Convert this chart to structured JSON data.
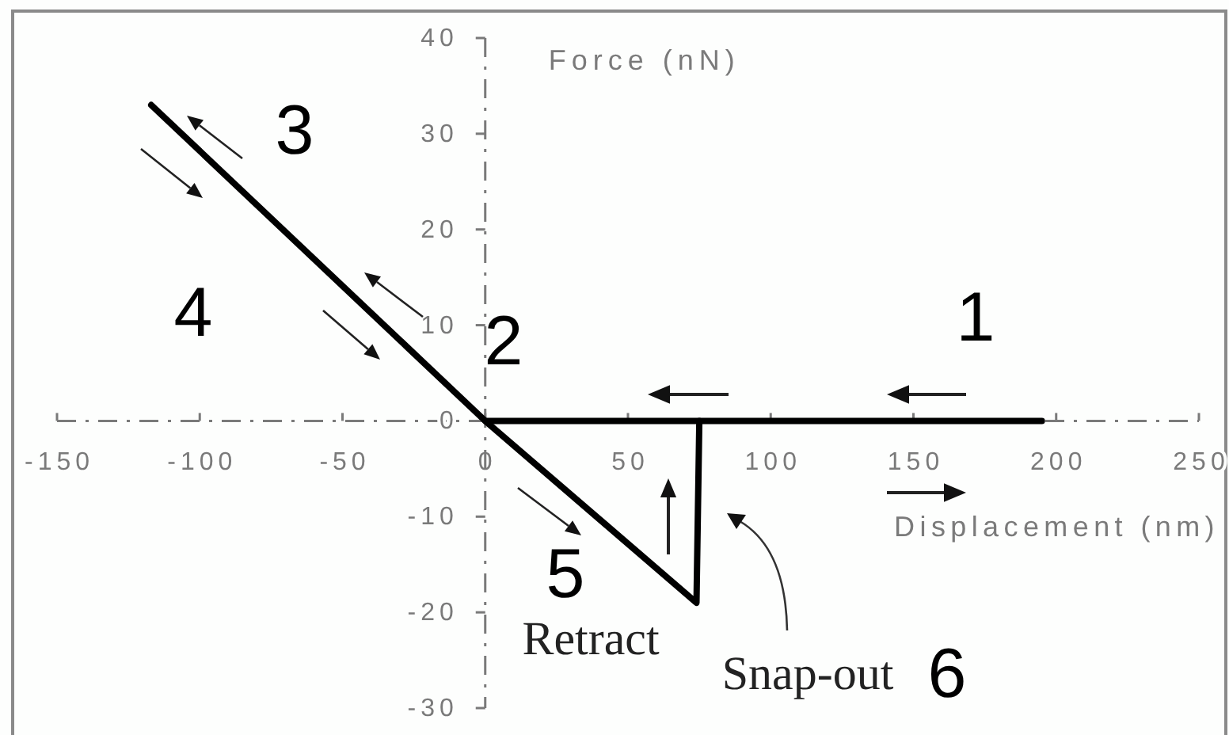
{
  "chart_data": {
    "type": "line",
    "xlabel": "Displacement (nm)",
    "ylabel": "Force (nN)",
    "series": [
      {
        "color": "#000000",
        "x": [
          195,
          0,
          -117
        ],
        "values": [
          0,
          0,
          33
        ]
      },
      {
        "color": "#000000",
        "x": [
          0,
          74,
          75
        ],
        "values": [
          0,
          -19,
          0
        ]
      }
    ],
    "xlim": [
      -150,
      250
    ],
    "xticks": [
      -150,
      -100,
      -50,
      0,
      50,
      100,
      150,
      200,
      250
    ],
    "ylim": [
      -30,
      40
    ],
    "yticks": [
      -30,
      -20,
      -10,
      0,
      10,
      20,
      30,
      40
    ],
    "annotations": [
      "1",
      "2",
      "3",
      "4",
      "5",
      "6",
      "Retract",
      "Snap-out"
    ]
  }
}
